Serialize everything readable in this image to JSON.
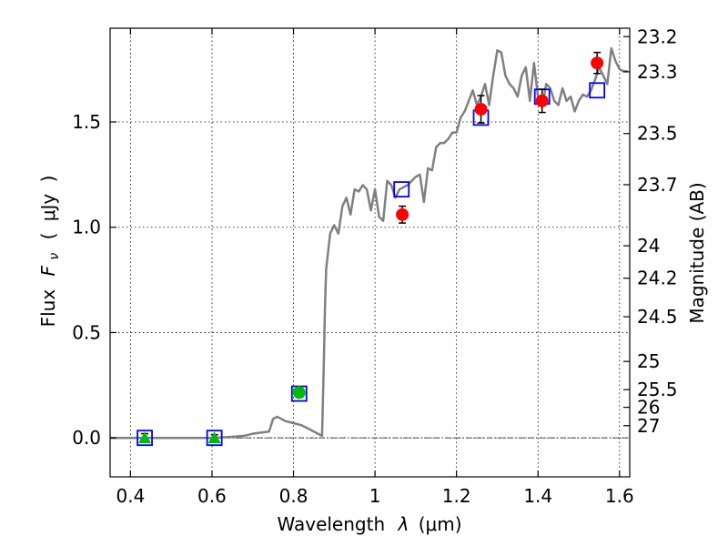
{
  "chart_data": {
    "type": "scatter",
    "xlabel": "Wavelength  λ (μm)",
    "ylabel": "Flux  F_ν  ( μJy )",
    "ylabel_parts": {
      "flux": "Flux",
      "fnu_main": "F",
      "fnu_sub": "ν",
      "open": "(",
      "unit": "μJy",
      "close": ")"
    },
    "xlabel_parts": {
      "main": "Wavelength",
      "lambda": "λ",
      "unit": "(μm)"
    },
    "y2label": "Magnitude (AB)",
    "xlim": [
      0.35,
      1.625
    ],
    "ylim": [
      -0.185,
      1.945
    ],
    "grid": true,
    "x_ticks": [
      0.4,
      0.6,
      0.8,
      1.0,
      1.2,
      1.4,
      1.6
    ],
    "x_tick_labels": [
      "0.4",
      "0.6",
      "0.8",
      "1",
      "1.2",
      "1.4",
      "1.6"
    ],
    "y_ticks": [
      0.0,
      0.5,
      1.0,
      1.5
    ],
    "y_tick_labels": [
      "0.0",
      "0.5",
      "1.0",
      "1.5"
    ],
    "mag_ticks": [
      {
        "flux": 1.905,
        "label": "23.2"
      },
      {
        "flux": 1.738,
        "label": "23.3"
      },
      {
        "flux": 1.445,
        "label": "23.5"
      },
      {
        "flux": 1.202,
        "label": "23.7"
      },
      {
        "flux": 0.912,
        "label": "24"
      },
      {
        "flux": 0.758,
        "label": "24.2"
      },
      {
        "flux": 0.575,
        "label": "24.5"
      },
      {
        "flux": 0.363,
        "label": "25"
      },
      {
        "flux": 0.229,
        "label": "25.5"
      },
      {
        "flux": 0.145,
        "label": "26"
      },
      {
        "flux": 0.058,
        "label": "27"
      }
    ],
    "series": [
      {
        "name": "model_sed",
        "kind": "line",
        "color": "#808080",
        "x": [
          0.35,
          0.5,
          0.6,
          0.65,
          0.68,
          0.7,
          0.72,
          0.74,
          0.75,
          0.76,
          0.78,
          0.8,
          0.82,
          0.84,
          0.86,
          0.87,
          0.875,
          0.877,
          0.88,
          0.89,
          0.9,
          0.91,
          0.92,
          0.93,
          0.94,
          0.95,
          0.96,
          0.97,
          0.98,
          0.99,
          1.0,
          1.01,
          1.02,
          1.03,
          1.04,
          1.05,
          1.06,
          1.08,
          1.1,
          1.11,
          1.12,
          1.13,
          1.14,
          1.15,
          1.16,
          1.17,
          1.18,
          1.19,
          1.2,
          1.21,
          1.22,
          1.23,
          1.24,
          1.25,
          1.26,
          1.27,
          1.28,
          1.29,
          1.3,
          1.31,
          1.32,
          1.33,
          1.34,
          1.35,
          1.36,
          1.37,
          1.38,
          1.39,
          1.4,
          1.41,
          1.42,
          1.43,
          1.44,
          1.45,
          1.46,
          1.47,
          1.48,
          1.49,
          1.5,
          1.51,
          1.52,
          1.53,
          1.54,
          1.55,
          1.56,
          1.57,
          1.58,
          1.59,
          1.6,
          1.61,
          1.62
        ],
        "y": [
          0.0,
          0.0,
          0.0,
          0.005,
          0.01,
          0.02,
          0.025,
          0.03,
          0.09,
          0.1,
          0.08,
          0.07,
          0.06,
          0.04,
          0.02,
          0.01,
          0.4,
          0.6,
          0.8,
          0.97,
          1.01,
          0.97,
          1.1,
          1.14,
          1.06,
          1.18,
          1.17,
          1.2,
          1.18,
          1.08,
          1.18,
          1.05,
          1.03,
          1.22,
          1.2,
          1.14,
          1.18,
          1.2,
          1.24,
          1.25,
          1.12,
          1.28,
          1.27,
          1.38,
          1.4,
          1.4,
          1.42,
          1.45,
          1.45,
          1.52,
          1.55,
          1.6,
          1.65,
          1.58,
          1.62,
          1.68,
          1.58,
          1.72,
          1.84,
          1.83,
          1.72,
          1.68,
          1.66,
          1.62,
          1.72,
          1.76,
          1.6,
          1.78,
          1.62,
          1.57,
          1.68,
          1.66,
          1.6,
          1.58,
          1.66,
          1.6,
          1.62,
          1.55,
          1.6,
          1.63,
          1.62,
          1.65,
          1.7,
          1.76,
          1.72,
          1.68,
          1.85,
          1.79,
          1.75,
          1.74,
          1.74
        ]
      },
      {
        "name": "model_photometry",
        "kind": "open-square",
        "color": "#0000ff",
        "x": [
          0.435,
          0.606,
          0.814,
          1.065,
          1.26,
          1.41,
          1.545
        ],
        "y": [
          0.0,
          0.0,
          0.21,
          1.18,
          1.52,
          1.62,
          1.65
        ]
      },
      {
        "name": "detections",
        "kind": "filled-circle",
        "color": "#ff0000",
        "x": [
          1.067,
          1.26,
          1.41,
          1.545
        ],
        "y": [
          1.06,
          1.56,
          1.6,
          1.78
        ],
        "yerr": [
          0.04,
          0.065,
          0.055,
          0.05
        ]
      },
      {
        "name": "optical",
        "kind": "filled-circle",
        "color": "#00bb00",
        "x": [
          0.814
        ],
        "y": [
          0.215
        ],
        "yerr": [
          0.02
        ]
      },
      {
        "name": "upper_limits",
        "kind": "filled-triangle",
        "color": "#00bb00",
        "x": [
          0.435,
          0.606
        ],
        "y": [
          0.0,
          0.0
        ],
        "yerr": [
          0.02,
          0.015
        ]
      }
    ]
  }
}
